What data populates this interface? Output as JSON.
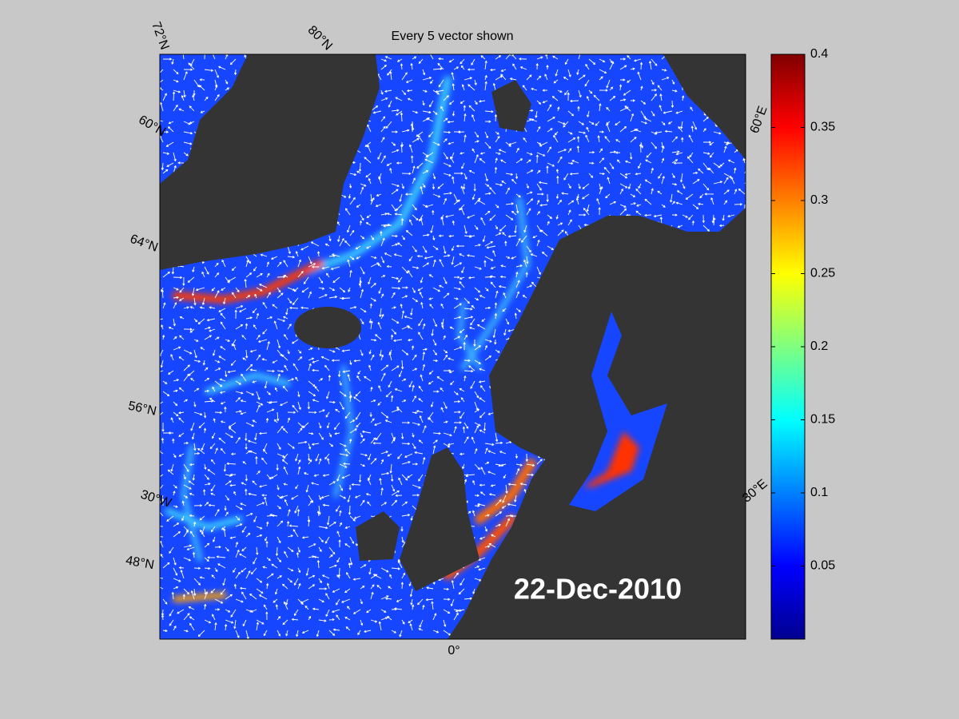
{
  "map": {
    "title": "Every 5 vector shown",
    "date_label": "22-Dec-2010",
    "graticule_labels": [
      "72°N",
      "80°N",
      "60°N",
      "64°N",
      "56°N",
      "30°W",
      "48°N",
      "0°",
      "30°E",
      "60°E"
    ]
  },
  "colorbar": {
    "lim": [
      0,
      0.4
    ],
    "ticks": [
      0.05,
      0.1,
      0.15,
      0.2,
      0.25,
      0.3,
      0.35,
      0.4
    ]
  }
}
